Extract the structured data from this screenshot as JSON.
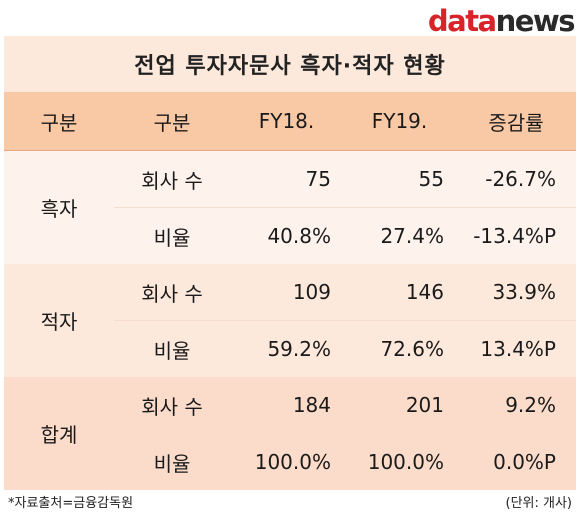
{
  "logo": {
    "part1": "data",
    "part2": "news"
  },
  "title": "전업 투자자문사 흑자·적자 현황",
  "headers": [
    "구분",
    "구분",
    "FY18.",
    "FY19.",
    "증감률"
  ],
  "groups": [
    {
      "name": "흑자",
      "rows": [
        {
          "label": "회사 수",
          "fy18": "75",
          "fy19": "55",
          "change": "-26.7%"
        },
        {
          "label": "비율",
          "fy18": "40.8%",
          "fy19": "27.4%",
          "change": "-13.4%P"
        }
      ]
    },
    {
      "name": "적자",
      "rows": [
        {
          "label": "회사 수",
          "fy18": "109",
          "fy19": "146",
          "change": "33.9%"
        },
        {
          "label": "비율",
          "fy18": "59.2%",
          "fy19": "72.6%",
          "change": "13.4%P"
        }
      ]
    },
    {
      "name": "합계",
      "rows": [
        {
          "label": "회사 수",
          "fy18": "184",
          "fy19": "201",
          "change": "9.2%"
        },
        {
          "label": "비율",
          "fy18": "100.0%",
          "fy19": "100.0%",
          "change": "0.0%P"
        }
      ]
    }
  ],
  "footer": {
    "source": "*자료출처=금융감독원",
    "unit": "(단위: 개사)"
  }
}
